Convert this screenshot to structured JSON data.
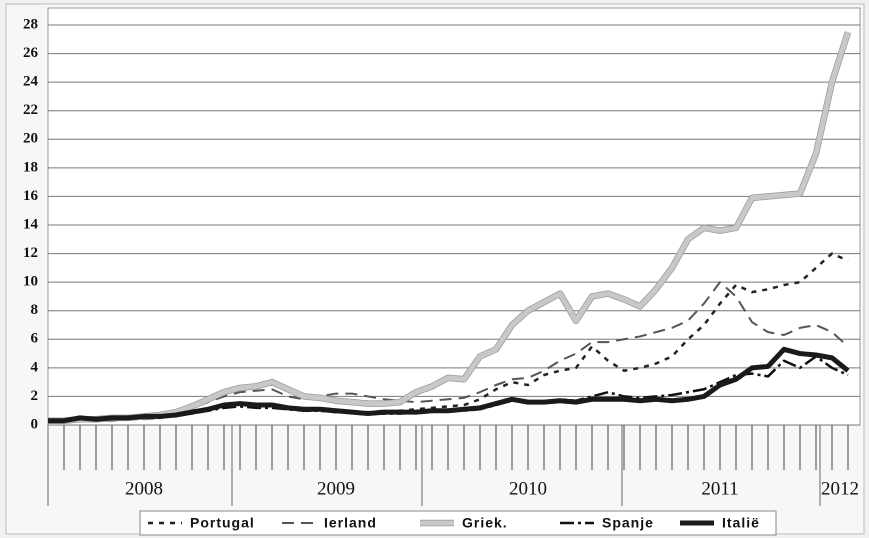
{
  "chart_data": {
    "type": "line",
    "categories": [
      null,
      null,
      null,
      null,
      null,
      null,
      "2008",
      null,
      null,
      null,
      null,
      null,
      null,
      null,
      null,
      null,
      null,
      null,
      "2009",
      null,
      null,
      null,
      null,
      null,
      null,
      null,
      null,
      null,
      null,
      null,
      "2010",
      null,
      null,
      null,
      null,
      null,
      null,
      null,
      null,
      null,
      null,
      null,
      "2011",
      null,
      null,
      null,
      null,
      null,
      null,
      null,
      "2012"
    ],
    "series": [
      {
        "name": "Portugal",
        "color": "#222222",
        "line_style": "short-dash",
        "values": [
          0.3,
          0.3,
          0.3,
          0.4,
          0.4,
          0.4,
          0.5,
          0.5,
          0.7,
          0.9,
          1.2,
          1.4,
          1.5,
          1.4,
          1.3,
          1.2,
          1.1,
          1.0,
          0.9,
          0.9,
          0.9,
          0.9,
          1.0,
          1.1,
          1.2,
          1.3,
          1.4,
          1.8,
          2.5,
          3.0,
          2.8,
          3.5,
          3.8,
          4.0,
          5.5,
          4.5,
          3.8,
          4.0,
          4.3,
          4.8,
          6.0,
          7.0,
          8.5,
          9.8,
          9.3,
          9.5,
          9.8,
          10.0,
          11.0,
          12.0,
          11.5
        ]
      },
      {
        "name": "Ierland",
        "color": "#555555",
        "line_style": "long-dash",
        "values": [
          0.2,
          0.2,
          0.3,
          0.3,
          0.3,
          0.4,
          0.4,
          0.5,
          0.8,
          1.2,
          1.6,
          2.0,
          2.3,
          2.4,
          2.5,
          2.0,
          1.8,
          2.0,
          2.2,
          2.2,
          2.0,
          1.8,
          1.7,
          1.6,
          1.7,
          1.8,
          1.9,
          2.3,
          2.8,
          3.2,
          3.3,
          3.8,
          4.5,
          5.0,
          5.8,
          5.8,
          6.0,
          6.2,
          6.5,
          6.8,
          7.3,
          8.5,
          10.0,
          9.0,
          7.2,
          6.5,
          6.3,
          6.8,
          7.0,
          6.5,
          5.5
        ]
      },
      {
        "name": "Griek.",
        "color": "#c8c8c8",
        "line_style": "thick",
        "values": [
          0.3,
          0.3,
          0.4,
          0.4,
          0.5,
          0.5,
          0.6,
          0.7,
          0.9,
          1.3,
          1.8,
          2.3,
          2.6,
          2.7,
          3.0,
          2.5,
          2.0,
          1.9,
          1.7,
          1.6,
          1.5,
          1.5,
          1.6,
          2.3,
          2.7,
          3.3,
          3.2,
          4.8,
          5.3,
          7.0,
          8.0,
          8.6,
          9.2,
          7.3,
          9.0,
          9.2,
          8.8,
          8.3,
          9.5,
          11.0,
          13.0,
          13.8,
          13.6,
          13.8,
          15.9,
          16.0,
          16.1,
          16.2,
          19.0,
          24.0,
          27.5
        ]
      },
      {
        "name": "Spanje",
        "color": "#111111",
        "line_style": "dash-dot",
        "values": [
          0.3,
          0.3,
          0.4,
          0.4,
          0.5,
          0.5,
          0.5,
          0.6,
          0.7,
          0.8,
          1.0,
          1.2,
          1.3,
          1.2,
          1.2,
          1.1,
          1.0,
          1.0,
          0.9,
          0.9,
          0.8,
          0.8,
          0.8,
          0.9,
          1.0,
          1.0,
          1.0,
          1.1,
          1.4,
          1.7,
          1.6,
          1.6,
          1.8,
          1.7,
          2.0,
          2.3,
          2.0,
          1.9,
          2.0,
          2.1,
          2.3,
          2.5,
          3.0,
          3.5,
          3.6,
          3.4,
          4.5,
          4.0,
          4.8,
          4.0,
          3.5
        ]
      },
      {
        "name": "Italië",
        "color": "#1a1a1a",
        "line_style": "thick",
        "values": [
          0.3,
          0.3,
          0.5,
          0.4,
          0.5,
          0.5,
          0.6,
          0.6,
          0.7,
          0.9,
          1.1,
          1.4,
          1.5,
          1.4,
          1.4,
          1.2,
          1.1,
          1.1,
          1.0,
          0.9,
          0.8,
          0.9,
          0.9,
          0.9,
          1.0,
          1.0,
          1.1,
          1.2,
          1.5,
          1.8,
          1.6,
          1.6,
          1.7,
          1.6,
          1.8,
          1.8,
          1.8,
          1.7,
          1.8,
          1.7,
          1.8,
          2.0,
          2.8,
          3.2,
          4.0,
          4.1,
          5.3,
          5.0,
          4.9,
          4.7,
          3.8
        ]
      }
    ],
    "ylim": [
      0,
      28
    ],
    "yticks": [
      0,
      2,
      4,
      6,
      8,
      10,
      12,
      14,
      16,
      18,
      20,
      22,
      24,
      26,
      28
    ],
    "grid": true,
    "legend": "bottom"
  }
}
